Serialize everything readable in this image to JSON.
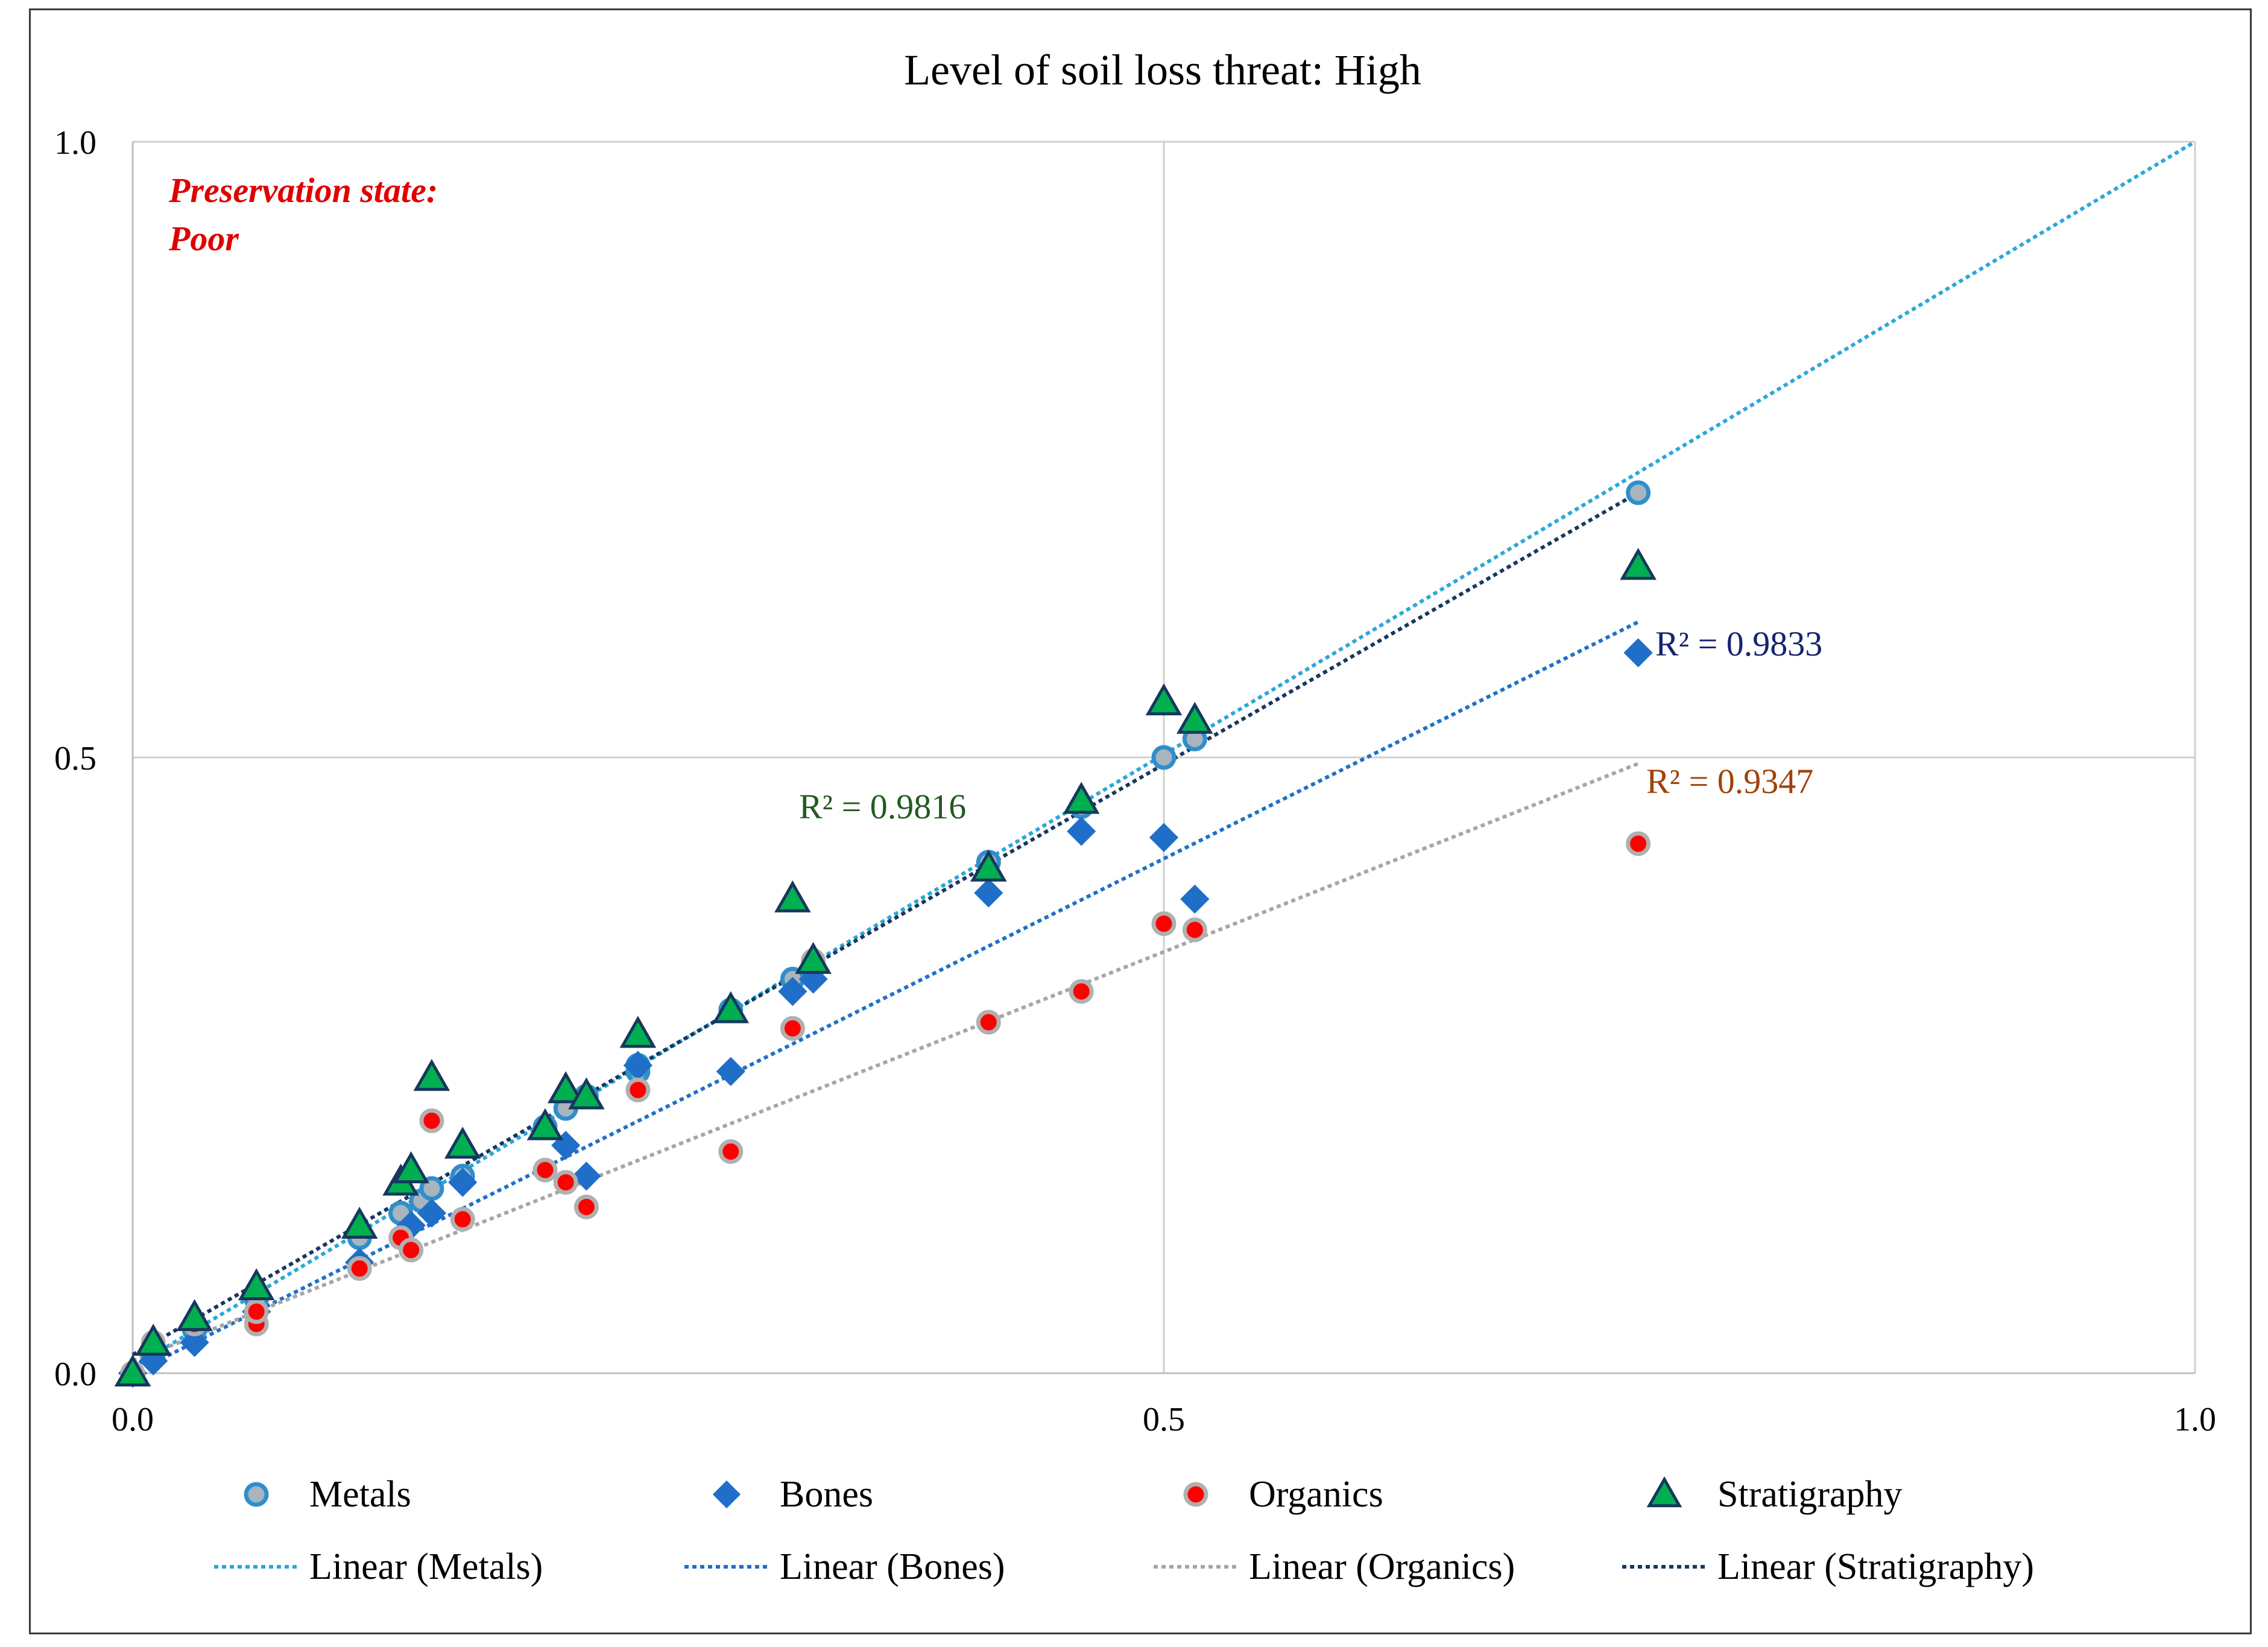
{
  "chart_data": {
    "type": "scatter",
    "title": "Level of soil loss threat: High",
    "xlabel": "",
    "ylabel": "",
    "xlim": [
      0,
      1
    ],
    "ylim": [
      0,
      1
    ],
    "x_ticks": [
      "0.0",
      "0.5",
      "1.0"
    ],
    "y_ticks": [
      "0.0",
      "0.5",
      "1.0"
    ],
    "grid": true,
    "legend_position": "bottom",
    "note_lines": [
      "Preservation state:",
      "Poor"
    ],
    "note_color": "#e00000",
    "series": [
      {
        "name": "Metals",
        "marker": "circle",
        "fill": "#a8b4be",
        "stroke": "#2f8fcb",
        "x": [
          0.0,
          0.01,
          0.03,
          0.06,
          0.11,
          0.13,
          0.14,
          0.145,
          0.16,
          0.2,
          0.21,
          0.22,
          0.245,
          0.245,
          0.29,
          0.32,
          0.33,
          0.415,
          0.46,
          0.5,
          0.515,
          0.73
        ],
        "y": [
          0.0,
          0.015,
          0.035,
          0.06,
          0.11,
          0.13,
          0.14,
          0.15,
          0.16,
          0.2,
          0.215,
          0.225,
          0.245,
          0.25,
          0.295,
          0.32,
          0.33,
          0.415,
          0.46,
          0.5,
          0.515,
          0.715
        ]
      },
      {
        "name": "Bones",
        "marker": "diamond",
        "fill": "#1f6fc8",
        "stroke": "#1f6fc8",
        "x": [
          0.0,
          0.01,
          0.03,
          0.06,
          0.11,
          0.135,
          0.145,
          0.16,
          0.21,
          0.22,
          0.245,
          0.29,
          0.32,
          0.33,
          0.415,
          0.46,
          0.5,
          0.515,
          0.73
        ],
        "y": [
          0.0,
          0.01,
          0.025,
          0.05,
          0.09,
          0.12,
          0.13,
          0.155,
          0.185,
          0.16,
          0.25,
          0.245,
          0.31,
          0.32,
          0.39,
          0.44,
          0.435,
          0.385,
          0.585
        ]
      },
      {
        "name": "Organics",
        "marker": "circle",
        "fill": "#ff0000",
        "stroke": "#b0b0b0",
        "x": [
          0.0,
          0.01,
          0.03,
          0.06,
          0.06,
          0.11,
          0.13,
          0.135,
          0.145,
          0.16,
          0.2,
          0.21,
          0.22,
          0.245,
          0.29,
          0.32,
          0.33,
          0.415,
          0.46,
          0.5,
          0.515,
          0.73
        ],
        "y": [
          0.0,
          0.025,
          0.04,
          0.04,
          0.05,
          0.085,
          0.11,
          0.1,
          0.205,
          0.125,
          0.165,
          0.155,
          0.135,
          0.23,
          0.18,
          0.28,
          0.335,
          0.285,
          0.31,
          0.365,
          0.36,
          0.43
        ]
      },
      {
        "name": "Stratigraphy",
        "marker": "triangle",
        "fill": "#00b050",
        "stroke": "#17375e",
        "x": [
          0.0,
          0.01,
          0.03,
          0.06,
          0.11,
          0.13,
          0.135,
          0.145,
          0.16,
          0.2,
          0.21,
          0.22,
          0.245,
          0.29,
          0.32,
          0.33,
          0.415,
          0.46,
          0.5,
          0.515,
          0.73
        ],
        "y": [
          0.0,
          0.025,
          0.045,
          0.07,
          0.12,
          0.155,
          0.165,
          0.24,
          0.185,
          0.2,
          0.23,
          0.225,
          0.275,
          0.295,
          0.385,
          0.335,
          0.41,
          0.465,
          0.545,
          0.53,
          0.655
        ]
      }
    ],
    "trendlines": [
      {
        "name": "Linear (Metals)",
        "color": "#2aa7d8",
        "x": [
          0.0,
          1.0
        ],
        "y": [
          0.005,
          1.0
        ],
        "r2_label": ""
      },
      {
        "name": "Linear (Bones)",
        "color": "#1f6fc8",
        "x": [
          0.0,
          0.73
        ],
        "y": [
          0.0,
          0.61
        ],
        "r2_label": "R² = 0.9833",
        "r2_color": "#17246e"
      },
      {
        "name": "Linear (Organics)",
        "color": "#a6a6a6",
        "x": [
          0.0,
          0.73
        ],
        "y": [
          0.01,
          0.495
        ],
        "r2_label": "R² = 0.9347",
        "r2_color": "#a0420a"
      },
      {
        "name": "Linear (Stratigraphy)",
        "color": "#17375e",
        "x": [
          0.0,
          0.73
        ],
        "y": [
          0.015,
          0.715
        ],
        "r2_label": "R² = 0.9816",
        "r2_color": "#245a20"
      }
    ]
  }
}
